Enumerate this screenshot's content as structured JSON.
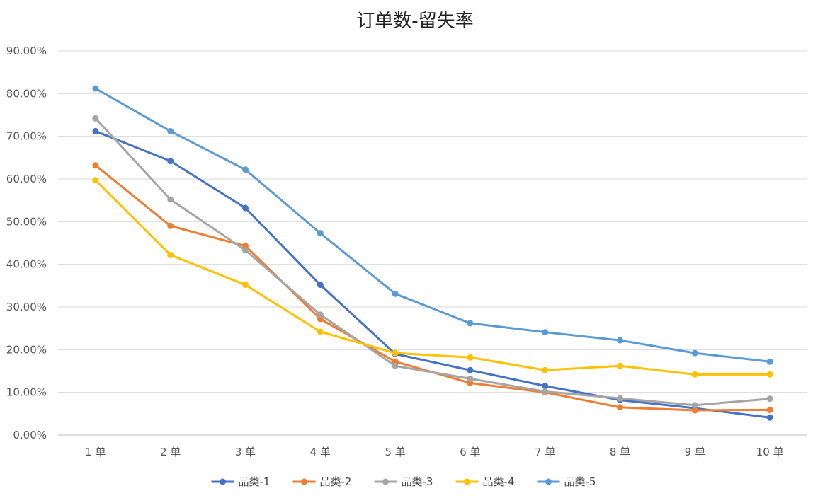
{
  "chart_data": {
    "type": "line",
    "title": "订单数-留失率",
    "categories": [
      "1 单",
      "2 单",
      "3 单",
      "4 单",
      "5 单",
      "6 单",
      "7 单",
      "8 单",
      "9 单",
      "10 单"
    ],
    "ylim": [
      0,
      0.9
    ],
    "yticks": [
      "0.00%",
      "10.00%",
      "20.00%",
      "30.00%",
      "40.00%",
      "50.00%",
      "60.00%",
      "70.00%",
      "80.00%",
      "90.00%"
    ],
    "grid": true,
    "legend_position": "bottom",
    "series": [
      {
        "name": "品类-1",
        "color": "#4472C4",
        "values": [
          0.712,
          0.642,
          0.532,
          0.352,
          0.19,
          0.152,
          0.115,
          0.082,
          0.063,
          0.041
        ]
      },
      {
        "name": "品类-2",
        "color": "#ED7D31",
        "values": [
          0.632,
          0.49,
          0.443,
          0.272,
          0.172,
          0.122,
          0.1,
          0.065,
          0.058,
          0.059
        ]
      },
      {
        "name": "品类-3",
        "color": "#A5A5A5",
        "values": [
          0.742,
          0.552,
          0.433,
          0.282,
          0.162,
          0.132,
          0.102,
          0.086,
          0.07,
          0.085
        ]
      },
      {
        "name": "品类-4",
        "color": "#FFC000",
        "values": [
          0.597,
          0.422,
          0.352,
          0.242,
          0.192,
          0.182,
          0.152,
          0.162,
          0.142,
          0.142
        ]
      },
      {
        "name": "品类-5",
        "color": "#5B9BD5",
        "values": [
          0.812,
          0.712,
          0.622,
          0.473,
          0.331,
          0.262,
          0.241,
          0.222,
          0.192,
          0.172
        ]
      }
    ]
  }
}
